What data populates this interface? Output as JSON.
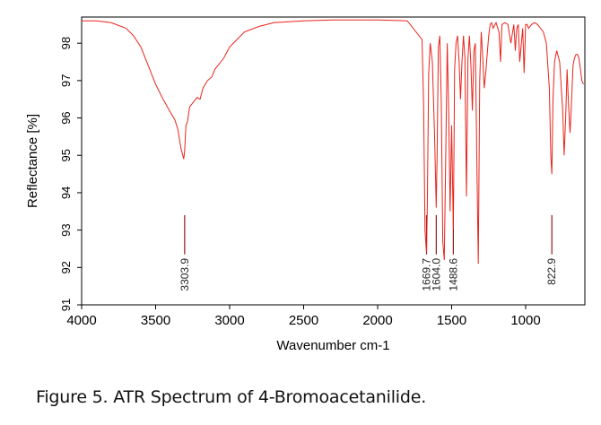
{
  "caption": "Figure 5. ATR Spectrum of 4-Bromoacetanilide.",
  "chart_data": {
    "type": "line",
    "title": "",
    "xlabel": "Wavenumber cm-1",
    "ylabel": "Reflectance [%]",
    "xlim": [
      4000,
      600
    ],
    "x_reversed": true,
    "ylim": [
      91,
      98.7
    ],
    "x_ticks": [
      4000,
      3500,
      3000,
      2500,
      2000,
      1500,
      1000
    ],
    "y_ticks": [
      91,
      92,
      93,
      94,
      95,
      96,
      97,
      98
    ],
    "grid": false,
    "line_color": "#e8241c",
    "annotation_color": "#8b1a1a",
    "series": [
      {
        "x": [
          4000,
          3900,
          3800,
          3700,
          3650,
          3600,
          3550,
          3500,
          3450,
          3400,
          3370,
          3350,
          3330,
          3310,
          3304,
          3295,
          3285,
          3270,
          3250,
          3220,
          3200,
          3180,
          3150,
          3120,
          3100,
          3060,
          3040,
          3000,
          2950,
          2900,
          2800,
          2700,
          2500,
          2300,
          2000,
          1800,
          1700,
          1690,
          1680,
          1672,
          1669.7,
          1665,
          1655,
          1645,
          1630,
          1615,
          1604,
          1598,
          1590,
          1580,
          1570,
          1560,
          1550,
          1540,
          1530,
          1520,
          1510,
          1500,
          1488.6,
          1480,
          1470,
          1460,
          1450,
          1440,
          1430,
          1420,
          1410,
          1400,
          1390,
          1380,
          1370,
          1360,
          1350,
          1340,
          1330,
          1320,
          1310,
          1300,
          1290,
          1280,
          1270,
          1260,
          1250,
          1240,
          1230,
          1220,
          1200,
          1180,
          1170,
          1160,
          1140,
          1120,
          1100,
          1080,
          1070,
          1060,
          1050,
          1040,
          1020,
          1010,
          1000,
          990,
          980,
          960,
          940,
          920,
          900,
          880,
          860,
          840,
          830,
          822.9,
          815,
          805,
          790,
          770,
          750,
          740,
          730,
          720,
          710,
          700,
          690,
          680,
          670,
          660,
          650,
          640,
          630,
          620,
          610
        ],
        "y": [
          98.6,
          98.6,
          98.55,
          98.4,
          98.2,
          97.9,
          97.4,
          96.9,
          96.5,
          96.15,
          95.95,
          95.7,
          95.2,
          94.9,
          95.1,
          95.8,
          95.9,
          96.3,
          96.4,
          96.55,
          96.5,
          96.8,
          97.0,
          97.1,
          97.3,
          97.5,
          97.6,
          97.9,
          98.1,
          98.3,
          98.45,
          98.55,
          98.6,
          98.62,
          98.62,
          98.6,
          98.1,
          96.4,
          93.0,
          92.5,
          92.4,
          93.5,
          97.2,
          98.0,
          97.5,
          95.5,
          93.6,
          95.0,
          97.9,
          98.2,
          96.5,
          92.7,
          92.2,
          95.0,
          98.0,
          96.2,
          93.5,
          95.8,
          93.0,
          97.3,
          98.0,
          98.2,
          97.5,
          96.5,
          97.5,
          98.2,
          97.6,
          93.9,
          97.6,
          98.2,
          97.4,
          96.2,
          97.8,
          98.0,
          95.0,
          92.1,
          97.0,
          98.3,
          97.6,
          96.8,
          97.2,
          97.7,
          98.2,
          98.5,
          98.55,
          98.4,
          98.55,
          98.3,
          97.5,
          98.5,
          98.55,
          98.5,
          98.0,
          98.5,
          97.8,
          98.4,
          98.5,
          97.5,
          98.4,
          97.2,
          98.5,
          98.5,
          98.4,
          98.5,
          98.55,
          98.5,
          98.4,
          98.3,
          98.0,
          96.8,
          95.0,
          94.5,
          96.5,
          97.5,
          97.8,
          97.5,
          96.2,
          95.0,
          96.0,
          97.3,
          96.3,
          95.6,
          96.4,
          97.4,
          97.6,
          97.7,
          97.7,
          97.6,
          97.3,
          97.0,
          96.9
        ]
      }
    ],
    "peak_labels": [
      {
        "x": 3303.9,
        "label": "3303.9"
      },
      {
        "x": 1669.7,
        "label": "1669.7"
      },
      {
        "x": 1604.0,
        "label": "1604.0"
      },
      {
        "x": 1488.6,
        "label": "1488.6"
      },
      {
        "x": 822.9,
        "label": "822.9"
      }
    ]
  }
}
